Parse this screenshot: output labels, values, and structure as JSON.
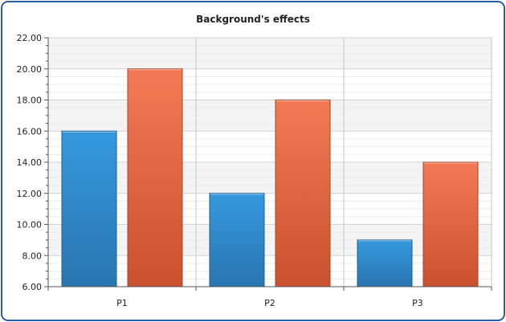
{
  "chart_data": {
    "type": "bar",
    "title": "Background's effects",
    "xlabel": "",
    "ylabel": "",
    "categories": [
      "P1",
      "P2",
      "P3"
    ],
    "series": [
      {
        "values": [
          16,
          12,
          9
        ],
        "color": "#2f8fd4"
      },
      {
        "values": [
          20,
          18,
          14
        ],
        "color": "#ee7350"
      }
    ],
    "ylim": [
      6,
      22
    ],
    "y_ticks": [
      "6.00",
      "8.00",
      "10.00",
      "12.00",
      "14.00",
      "16.00",
      "18.00",
      "20.00",
      "22.00"
    ],
    "grid": true
  }
}
